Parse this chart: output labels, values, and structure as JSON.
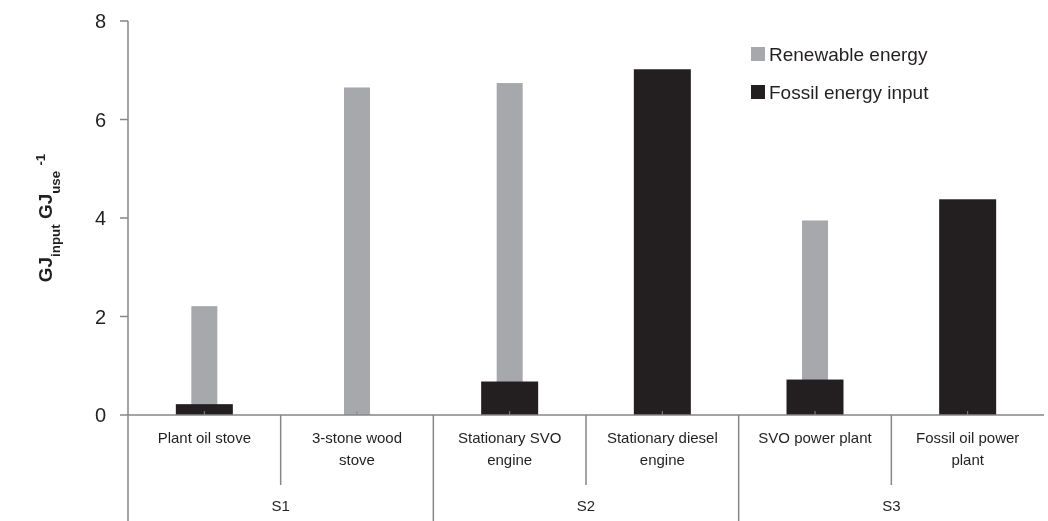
{
  "chart_data": {
    "type": "bar",
    "ylabel": "GJ$_{input}$ GJ$_{use}$ $^{-1}$",
    "categories": [
      "Plant oil stove",
      "3-stone wood stove",
      "Stationary SVO engine",
      "Stationary diesel engine",
      "SVO power plant",
      "Fossil oil power plant"
    ],
    "annotations": [
      "S1",
      "S2",
      "S3"
    ],
    "series": [
      {
        "name": "Renewable energy",
        "color": "#a7a8ab",
        "values": [
          2.21,
          6.65,
          6.74,
          0,
          3.95,
          0
        ]
      },
      {
        "name": "Fossil energy input",
        "color": "#231f20",
        "values": [
          0.22,
          0,
          0.68,
          7.02,
          0.72,
          4.38
        ]
      }
    ],
    "ylim": [
      0,
      8
    ],
    "yticks": [
      0,
      2,
      4,
      6,
      8
    ],
    "grid": false,
    "legend": "top right"
  }
}
